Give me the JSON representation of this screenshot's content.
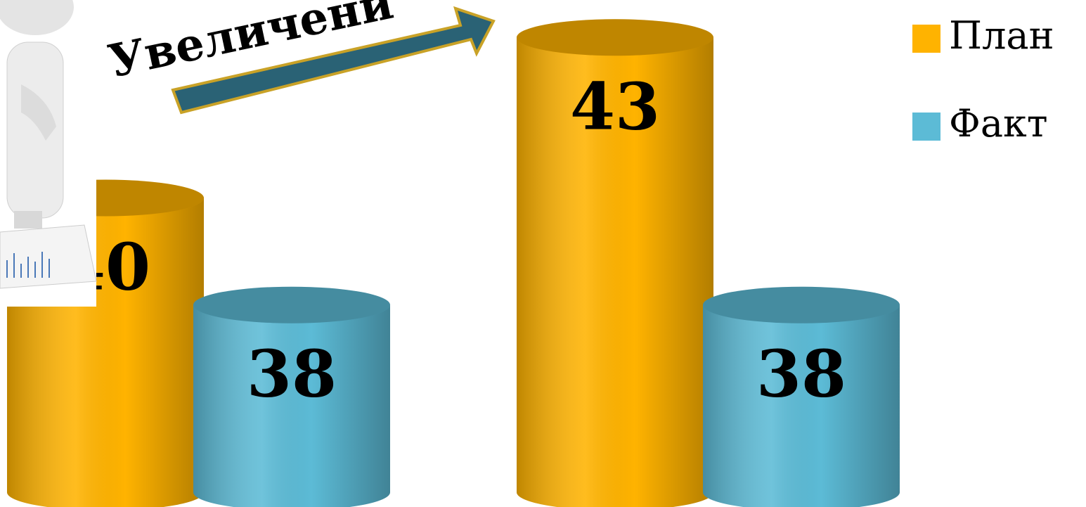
{
  "chart_data": {
    "type": "bar3d-cylinder",
    "annotation": "Увеличени",
    "categories": [
      null,
      null
    ],
    "series": [
      {
        "name": "План",
        "color": "#ffb300",
        "values": [
          40,
          43
        ]
      },
      {
        "name": "Факт",
        "color": "#5cbbd6",
        "values": [
          38,
          38
        ]
      }
    ],
    "ylim": [
      34.5,
      43.7
    ],
    "legend": "top-right"
  }
}
